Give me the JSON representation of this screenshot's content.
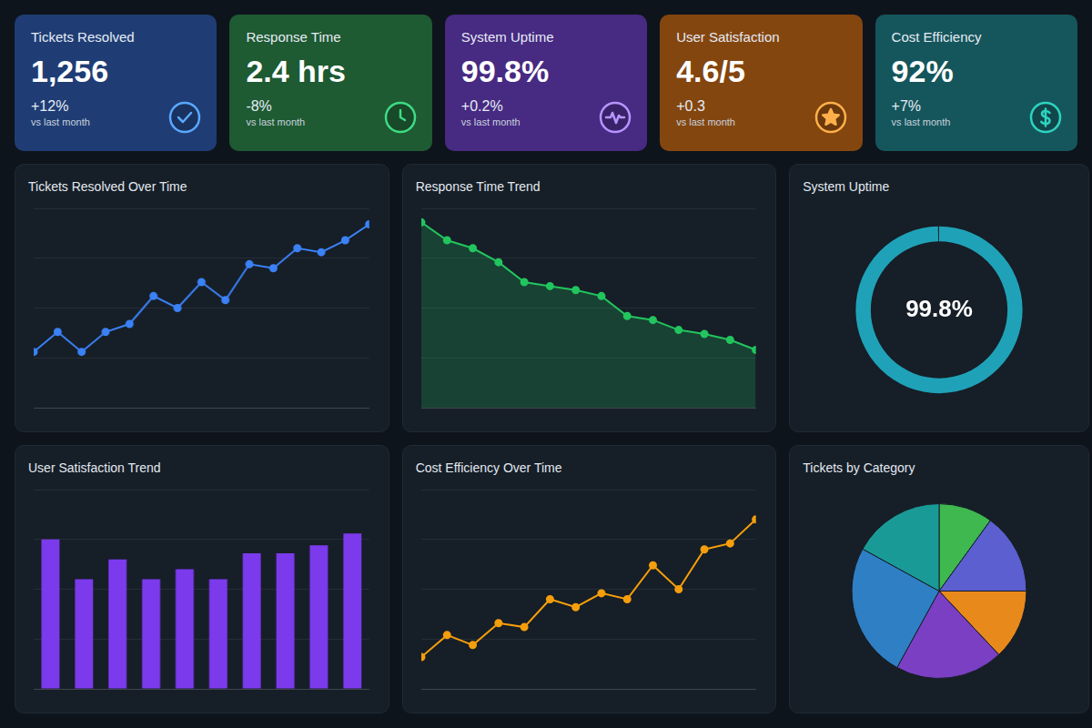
{
  "kpis": [
    {
      "title": "Tickets Resolved",
      "value": "1,256",
      "change": "+12%",
      "note": "vs last month",
      "color": "#1f3d74"
    },
    {
      "title": "Response Time",
      "value": "2.4 hrs",
      "change": "-8%",
      "note": "vs last month",
      "color": "#1e5a32"
    },
    {
      "title": "System Uptime",
      "value": "99.8%",
      "change": "+0.2%",
      "note": "vs last month",
      "color": "#472a82"
    },
    {
      "title": "User Satisfaction",
      "value": "4.6/5",
      "change": "+0.3",
      "note": "vs last month",
      "color": "#84460f"
    },
    {
      "title": "Cost Efficiency",
      "value": "92%",
      "change": "+7%",
      "note": "vs last month",
      "color": "#15565c"
    }
  ],
  "chart_data": [
    {
      "type": "line",
      "title": "Tickets Resolved Over Time",
      "categories": [
        null,
        null,
        null,
        null,
        null,
        null,
        null,
        null,
        null,
        null,
        null,
        null,
        null,
        null,
        null
      ],
      "values": [
        28,
        38,
        28,
        38,
        42,
        56,
        50,
        63,
        54,
        72,
        70,
        80,
        78,
        84,
        92
      ],
      "color": "#3b82f6",
      "marker": "circle",
      "ylim": [
        0,
        100
      ],
      "yticks": [
        0,
        25,
        50,
        75,
        100
      ],
      "grid": true,
      "tick_labels": false
    },
    {
      "type": "area",
      "title": "Response Time Trend",
      "categories": [
        null,
        null,
        null,
        null,
        null,
        null,
        null,
        null,
        null,
        null,
        null,
        null,
        null,
        null
      ],
      "values": [
        93,
        84,
        80,
        73,
        63,
        61,
        59,
        56,
        46,
        44,
        39,
        37,
        34,
        29
      ],
      "color": "#22c55e",
      "marker": "circle",
      "ylim": [
        0,
        100
      ],
      "yticks": [
        0,
        25,
        50,
        75,
        100
      ],
      "grid": true,
      "tick_labels": false
    },
    {
      "type": "doughnut",
      "title": "System Uptime",
      "values": [
        99.8,
        0.2
      ],
      "value_labels": [
        "99.8%",
        null
      ],
      "colors": [
        "#1fa2b8",
        "#1d2933"
      ]
    },
    {
      "type": "bar",
      "title": "User Satisfaction Trend",
      "categories": [
        null,
        null,
        null,
        null,
        null,
        null,
        null,
        null,
        null,
        null
      ],
      "values": [
        75,
        55,
        65,
        55,
        60,
        55,
        68,
        68,
        72,
        78
      ],
      "color": "#7c3aed",
      "ylim": [
        0,
        100
      ],
      "yticks": [
        0,
        25,
        50,
        75,
        100
      ],
      "grid": true,
      "tick_labels": false
    },
    {
      "type": "line",
      "title": "Cost Efficiency Over Time",
      "categories": [
        null,
        null,
        null,
        null,
        null,
        null,
        null,
        null,
        null,
        null,
        null,
        null,
        null,
        null
      ],
      "values": [
        16,
        27,
        22,
        33,
        31,
        45,
        41,
        48,
        45,
        62,
        50,
        70,
        73,
        85
      ],
      "color": "#f59e0b",
      "marker": "circle",
      "ylim": [
        0,
        100
      ],
      "yticks": [
        0,
        25,
        50,
        75,
        100
      ],
      "grid": true,
      "tick_labels": false
    },
    {
      "type": "pie",
      "title": "Tickets by Category",
      "values": [
        10,
        15,
        13,
        20,
        25,
        17
      ],
      "colors": [
        "#3fb84f",
        "#5b5fd0",
        "#e8891c",
        "#7b3fc4",
        "#2f7fc4",
        "#1a9a96"
      ]
    }
  ]
}
